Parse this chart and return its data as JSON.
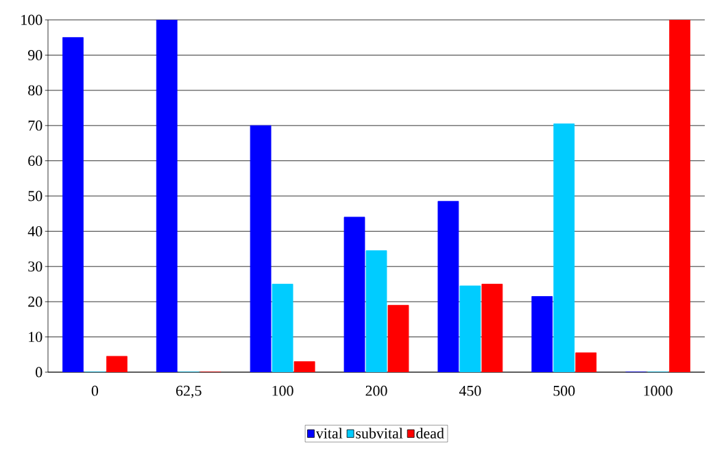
{
  "chart_data": {
    "type": "bar",
    "categories": [
      "0",
      "62,5",
      "100",
      "200",
      "450",
      "500",
      "1000"
    ],
    "series": [
      {
        "name": "vital",
        "color": "#0000ff",
        "values": [
          95,
          100,
          70,
          44,
          48.5,
          21.5,
          0
        ]
      },
      {
        "name": "subvital",
        "color": "#00ccff",
        "values": [
          0,
          0,
          25,
          34.5,
          24.5,
          70.5,
          0
        ]
      },
      {
        "name": "dead",
        "color": "#ff0000",
        "values": [
          4.5,
          0,
          3,
          19,
          25,
          5.5,
          100
        ]
      }
    ],
    "ylim": [
      0,
      100
    ],
    "yticks": [
      0,
      10,
      20,
      30,
      40,
      50,
      60,
      70,
      80,
      90,
      100
    ],
    "grid": "y",
    "legend": "bottom"
  }
}
